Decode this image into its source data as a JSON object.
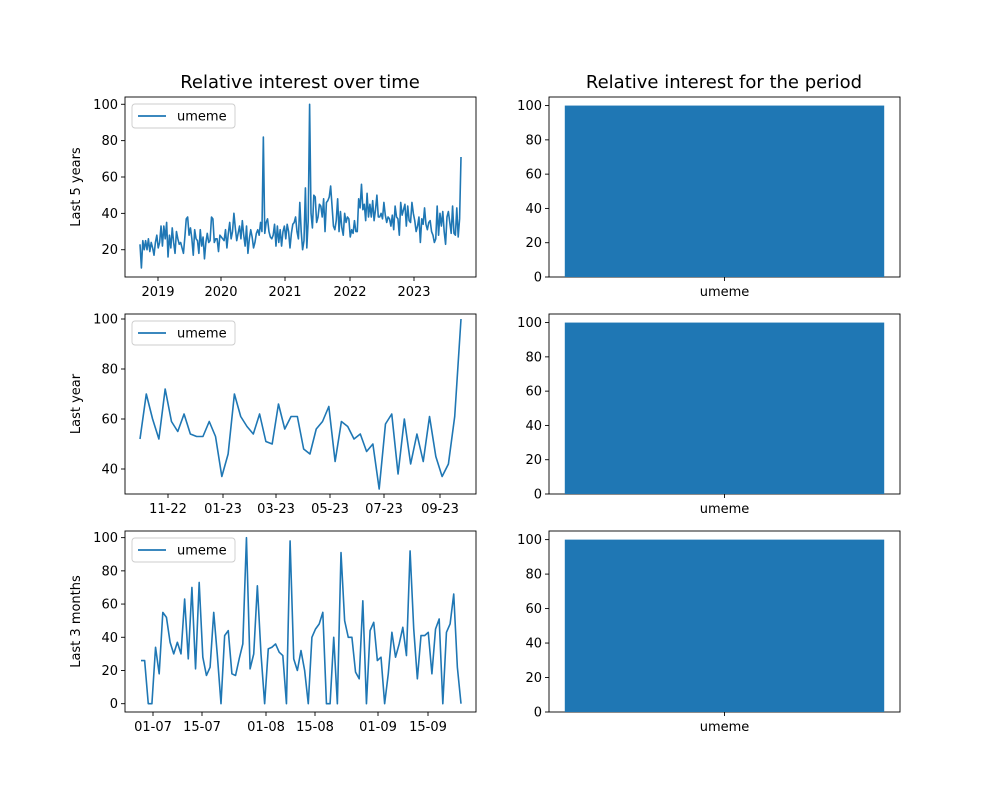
{
  "titles": {
    "left": "Relative interest over time",
    "right": "Relative interest for the period"
  },
  "colors": {
    "series": "#1f77b4",
    "axis": "#000000",
    "background": "#ffffff"
  },
  "chart_data": [
    {
      "panel": "five_years",
      "type": "line",
      "ylabel": "Last 5 years",
      "legend": {
        "placement": "top-left",
        "entries": [
          "umeme"
        ]
      },
      "series": [
        {
          "name": "umeme"
        }
      ],
      "x_ticks": [
        "2019",
        "2020",
        "2021",
        "2022",
        "2023"
      ],
      "y_ticks": [
        20,
        40,
        60,
        80,
        100
      ],
      "xlim": [
        "2018-09",
        "2023-10"
      ],
      "ylim": [
        5,
        104
      ],
      "grid": false,
      "values": [
        23,
        10,
        25,
        20,
        25,
        20,
        26,
        19,
        24,
        21,
        17,
        24,
        28,
        21,
        24,
        33,
        22,
        33,
        26,
        35,
        16,
        28,
        21,
        32,
        24,
        18,
        30,
        26,
        23,
        24,
        21,
        18,
        27,
        37,
        38,
        28,
        32,
        26,
        17,
        31,
        26,
        25,
        18,
        31,
        22,
        27,
        15,
        24,
        29,
        24,
        25,
        38,
        37,
        24,
        26,
        26,
        19,
        28,
        27,
        26,
        25,
        31,
        21,
        29,
        35,
        26,
        30,
        40,
        32,
        25,
        29,
        33,
        26,
        36,
        28,
        22,
        33,
        18,
        26,
        31,
        27,
        21,
        24,
        29,
        31,
        28,
        35,
        30,
        82,
        29,
        35,
        37,
        30,
        27,
        26,
        28,
        34,
        22,
        33,
        24,
        31,
        22,
        30,
        33,
        26,
        34,
        30,
        21,
        29,
        34,
        35,
        38,
        30,
        26,
        46,
        30,
        20,
        25,
        54,
        21,
        36,
        100,
        40,
        32,
        50,
        49,
        35,
        38,
        45,
        44,
        38,
        48,
        30,
        46,
        47,
        49,
        55,
        44,
        33,
        31,
        36,
        48,
        30,
        41,
        32,
        28,
        40,
        35,
        38,
        37,
        27,
        31,
        29,
        36,
        30,
        30,
        48,
        43,
        56,
        42,
        45,
        36,
        51,
        38,
        45,
        38,
        47,
        36,
        42,
        50,
        38,
        38,
        40,
        37,
        46,
        39,
        35,
        38,
        37,
        33,
        39,
        31,
        44,
        38,
        37,
        28,
        46,
        39,
        42,
        45,
        33,
        44,
        36,
        35,
        46,
        40,
        36,
        30,
        33,
        38,
        24,
        37,
        34,
        43,
        34,
        31,
        35,
        36,
        30,
        28,
        24,
        26,
        44,
        28,
        40,
        33,
        41,
        30,
        23,
        38,
        41,
        35,
        29,
        44,
        29,
        28,
        43,
        27,
        37,
        71
      ]
    },
    {
      "panel": "last_year",
      "type": "line",
      "ylabel": "Last year",
      "legend": {
        "placement": "top-left",
        "entries": [
          "umeme"
        ]
      },
      "series": [
        {
          "name": "umeme"
        }
      ],
      "x_ticks": [
        "11-22",
        "01-23",
        "03-23",
        "05-23",
        "07-23",
        "09-23"
      ],
      "y_ticks": [
        40,
        60,
        80,
        100
      ],
      "ylim": [
        30,
        102
      ],
      "grid": false,
      "values": [
        52,
        70,
        60,
        52,
        72,
        59,
        55,
        62,
        54,
        53,
        53,
        59,
        53,
        37,
        46,
        70,
        61,
        57,
        54,
        62,
        51,
        50,
        66,
        56,
        61,
        61,
        48,
        46,
        56,
        59,
        65,
        43,
        59,
        57,
        52,
        54,
        47,
        50,
        32,
        58,
        62,
        38,
        60,
        42,
        54,
        43,
        61,
        45,
        37,
        42,
        61,
        100
      ]
    },
    {
      "panel": "last_3_months",
      "type": "line",
      "ylabel": "Last 3 months",
      "legend": {
        "placement": "top-left",
        "entries": [
          "umeme"
        ]
      },
      "series": [
        {
          "name": "umeme"
        }
      ],
      "x_ticks": [
        "01-07",
        "15-07",
        "01-08",
        "15-08",
        "01-09",
        "15-09"
      ],
      "y_ticks": [
        0,
        20,
        40,
        60,
        80,
        100
      ],
      "ylim": [
        -5,
        104
      ],
      "grid": false,
      "values": [
        26,
        26,
        0,
        0,
        34,
        18,
        55,
        52,
        37,
        30,
        37,
        30,
        63,
        27,
        70,
        21,
        73,
        28,
        17,
        22,
        55,
        29,
        0,
        41,
        44,
        18,
        17,
        27,
        36,
        100,
        21,
        30,
        71,
        30,
        0,
        33,
        34,
        36,
        31,
        29,
        0,
        98,
        27,
        20,
        32,
        20,
        0,
        40,
        45,
        48,
        55,
        0,
        0,
        40,
        0,
        91,
        50,
        40,
        40,
        19,
        15,
        62,
        0,
        44,
        49,
        26,
        28,
        0,
        18,
        43,
        28,
        36,
        46,
        29,
        92,
        45,
        15,
        41,
        41,
        43,
        18,
        45,
        51,
        0,
        43,
        48,
        66,
        22,
        0
      ]
    },
    {
      "panel": "five_years_total",
      "type": "bar",
      "categories": [
        "umeme"
      ],
      "values": [
        100
      ],
      "y_ticks": [
        0,
        20,
        40,
        60,
        80,
        100
      ],
      "ylim": [
        0,
        105
      ],
      "grid": false
    },
    {
      "panel": "last_year_total",
      "type": "bar",
      "categories": [
        "umeme"
      ],
      "values": [
        100
      ],
      "y_ticks": [
        0,
        20,
        40,
        60,
        80,
        100
      ],
      "ylim": [
        0,
        105
      ],
      "grid": false
    },
    {
      "panel": "last_3_months_total",
      "type": "bar",
      "categories": [
        "umeme"
      ],
      "values": [
        100
      ],
      "y_ticks": [
        0,
        20,
        40,
        60,
        80,
        100
      ],
      "ylim": [
        0,
        105
      ],
      "grid": false
    }
  ]
}
